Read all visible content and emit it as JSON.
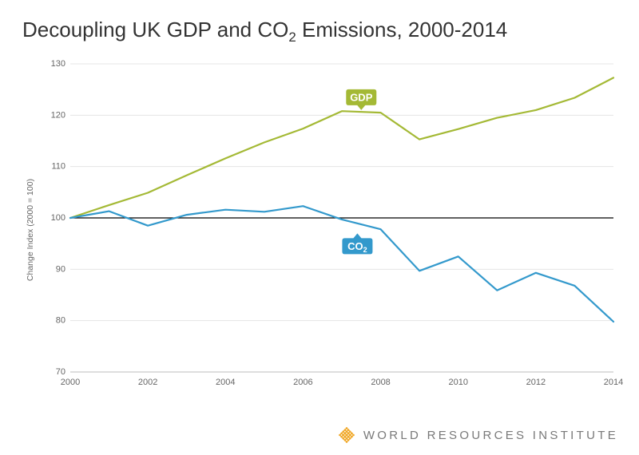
{
  "title_html": "Decoupling UK GDP and CO<sub>2</sub> Emissions, 2000-2014",
  "ylabel": "Change Index (2000 = 100)",
  "footer": "WORLD RESOURCES INSTITUTE",
  "chart": {
    "type": "line",
    "background_color": "#ffffff",
    "grid_color": "#e5e5e5",
    "axis_text_color": "#666666",
    "title_fontsize": 26,
    "title_color": "#333333",
    "label_fontsize": 11,
    "x": {
      "min": 2000,
      "max": 2014,
      "ticks": [
        2000,
        2002,
        2004,
        2006,
        2008,
        2010,
        2012,
        2014
      ]
    },
    "y": {
      "min": 70,
      "max": 130,
      "ticks": [
        70,
        80,
        90,
        100,
        110,
        120,
        130
      ]
    },
    "baseline": {
      "y": 100,
      "color": "#000000",
      "width": 1.3
    },
    "series": [
      {
        "name": "GDP",
        "color": "#a4b935",
        "line_width": 2.2,
        "label_x": 2007.5,
        "label_y": 123.5,
        "years": [
          2000,
          2001,
          2002,
          2003,
          2004,
          2005,
          2006,
          2007,
          2008,
          2009,
          2010,
          2011,
          2012,
          2013,
          2014
        ],
        "values": [
          100,
          102.5,
          104.9,
          108.3,
          111.6,
          114.7,
          117.4,
          120.8,
          120.5,
          115.3,
          117.3,
          119.5,
          121.0,
          123.4,
          127.3
        ]
      },
      {
        "name": "CO2",
        "color": "#3399cc",
        "line_width": 2.2,
        "label_x": 2007.4,
        "label_y": 94.5,
        "label_sub": true,
        "years": [
          2000,
          2001,
          2002,
          2003,
          2004,
          2005,
          2006,
          2007,
          2008,
          2009,
          2010,
          2011,
          2012,
          2013,
          2014
        ],
        "values": [
          100,
          101.3,
          98.5,
          100.6,
          101.6,
          101.2,
          102.3,
          99.7,
          97.8,
          89.7,
          92.5,
          85.9,
          89.3,
          86.8,
          79.8
        ]
      }
    ]
  },
  "logo_color": "#f0a828"
}
